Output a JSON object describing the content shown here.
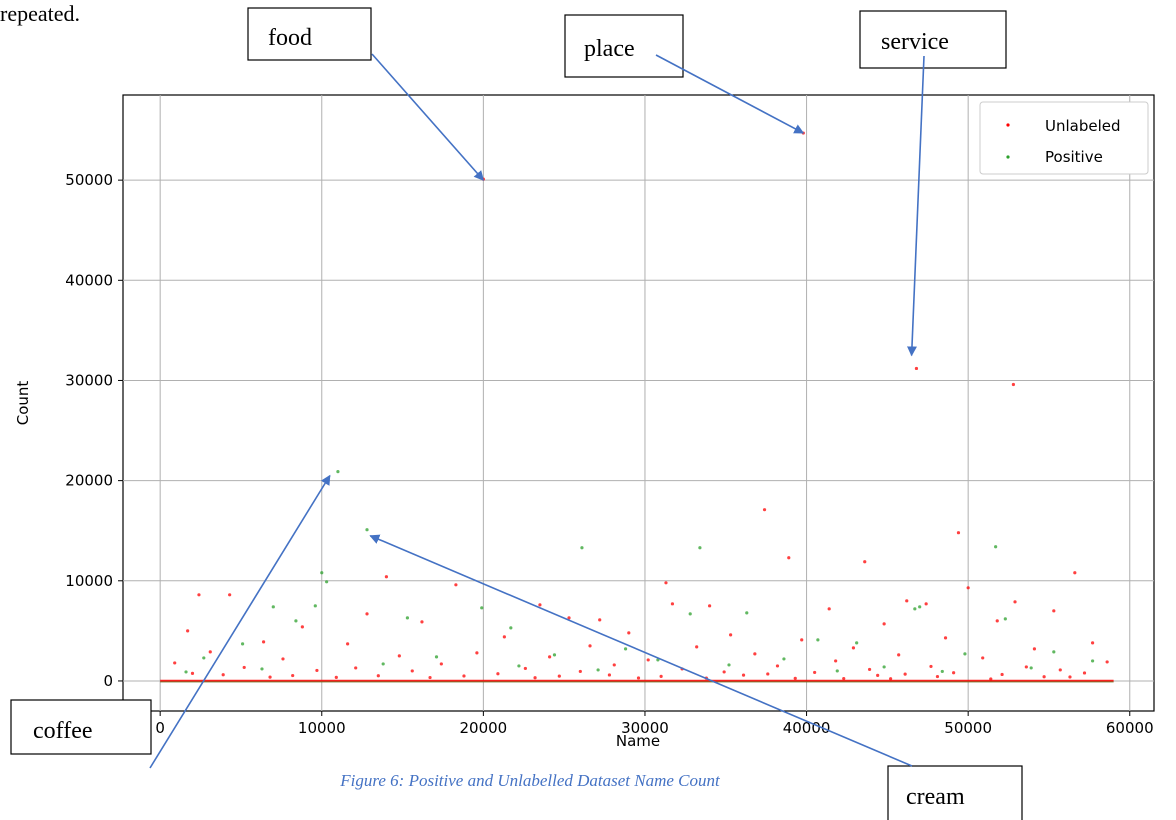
{
  "header_fragment": "repeated.",
  "caption": "Figure 6: Positive and Unlabelled Dataset Name Count",
  "caption_color": "#4472c4",
  "annotations": [
    {
      "label": "food",
      "target_x": 20000,
      "target_y": 50000
    },
    {
      "label": "place",
      "target_x": 39800,
      "target_y": 54700
    },
    {
      "label": "service",
      "target_x": 46500,
      "target_y": 32500
    },
    {
      "label": "coffee",
      "target_x": 10500,
      "target_y": 20500
    },
    {
      "label": "cream",
      "target_x": 13000,
      "target_y": 14500
    }
  ],
  "annotation_arrow_color": "#4472c4",
  "chart_data": {
    "type": "scatter",
    "xlabel": "Name",
    "ylabel": "Count",
    "xlim": [
      -2300,
      61500
    ],
    "ylim": [
      -3000,
      58500
    ],
    "xticks": [
      0,
      10000,
      20000,
      30000,
      40000,
      50000,
      60000
    ],
    "yticks": [
      0,
      10000,
      20000,
      30000,
      40000,
      50000
    ],
    "grid": true,
    "legend_position": "top-right",
    "series": [
      {
        "name": "Unlabeled",
        "color": "#ff0000",
        "points": [
          [
            20000,
            50100
          ],
          [
            39800,
            54700
          ],
          [
            46800,
            31200
          ],
          [
            52800,
            29600
          ],
          [
            37400,
            17100
          ],
          [
            49400,
            14800
          ],
          [
            38900,
            12300
          ],
          [
            43600,
            11900
          ],
          [
            56600,
            10800
          ],
          [
            14000,
            10400
          ],
          [
            31300,
            9800
          ],
          [
            18300,
            9600
          ],
          [
            50000,
            9300
          ],
          [
            2400,
            8600
          ],
          [
            4300,
            8600
          ],
          [
            46200,
            8000
          ],
          [
            52900,
            7900
          ],
          [
            47400,
            7700
          ],
          [
            23500,
            7600
          ],
          [
            31700,
            7700
          ],
          [
            34000,
            7500
          ],
          [
            41400,
            7200
          ],
          [
            55300,
            7000
          ],
          [
            12800,
            6700
          ],
          [
            25300,
            6300
          ],
          [
            27200,
            6100
          ],
          [
            51800,
            6000
          ],
          [
            16200,
            5900
          ],
          [
            44800,
            5700
          ],
          [
            8800,
            5400
          ],
          [
            1700,
            5000
          ],
          [
            29000,
            4800
          ],
          [
            35300,
            4600
          ],
          [
            21300,
            4400
          ],
          [
            48600,
            4300
          ],
          [
            57700,
            3800
          ],
          [
            6400,
            3900
          ],
          [
            39700,
            4100
          ],
          [
            11600,
            3700
          ],
          [
            26600,
            3500
          ],
          [
            33200,
            3400
          ],
          [
            42900,
            3300
          ],
          [
            54100,
            3200
          ],
          [
            3100,
            2900
          ],
          [
            19600,
            2800
          ],
          [
            36800,
            2700
          ],
          [
            45700,
            2600
          ],
          [
            14800,
            2500
          ],
          [
            24100,
            2400
          ],
          [
            50900,
            2300
          ],
          [
            7600,
            2200
          ],
          [
            30200,
            2100
          ],
          [
            41800,
            2000
          ],
          [
            58600,
            1900
          ],
          [
            900,
            1800
          ],
          [
            17400,
            1700
          ],
          [
            28100,
            1600
          ],
          [
            38200,
            1500
          ],
          [
            47700,
            1450
          ],
          [
            53600,
            1400
          ],
          [
            5200,
            1350
          ],
          [
            12100,
            1300
          ],
          [
            22600,
            1250
          ],
          [
            32300,
            1200
          ],
          [
            43900,
            1150
          ],
          [
            55700,
            1100
          ],
          [
            9700,
            1050
          ],
          [
            15600,
            1000
          ],
          [
            26000,
            950
          ],
          [
            34900,
            900
          ],
          [
            40500,
            850
          ],
          [
            49100,
            820
          ],
          [
            57200,
            800
          ],
          [
            2000,
            760
          ],
          [
            20900,
            720
          ],
          [
            37600,
            700
          ],
          [
            46100,
            680
          ],
          [
            52100,
            650
          ],
          [
            3900,
            620
          ],
          [
            27800,
            600
          ],
          [
            36100,
            580
          ],
          [
            44400,
            560
          ],
          [
            8200,
            540
          ],
          [
            13500,
            520
          ],
          [
            18800,
            500
          ],
          [
            24700,
            480
          ],
          [
            31000,
            460
          ],
          [
            48100,
            440
          ],
          [
            54700,
            420
          ],
          [
            56300,
            400
          ],
          [
            6800,
            380
          ],
          [
            10900,
            360
          ],
          [
            16700,
            340
          ],
          [
            23200,
            320
          ],
          [
            29600,
            300
          ],
          [
            33800,
            280
          ],
          [
            39300,
            260
          ],
          [
            42300,
            240
          ],
          [
            45200,
            220
          ],
          [
            51400,
            200
          ]
        ]
      },
      {
        "name": "Positive",
        "color": "#2ca02c",
        "points": [
          [
            11000,
            20900
          ],
          [
            12800,
            15100
          ],
          [
            26100,
            13300
          ],
          [
            33400,
            13300
          ],
          [
            51700,
            13400
          ],
          [
            10000,
            10800
          ],
          [
            10300,
            9900
          ],
          [
            19900,
            7300
          ],
          [
            7000,
            7400
          ],
          [
            8400,
            6000
          ],
          [
            47000,
            7400
          ],
          [
            46700,
            7200
          ],
          [
            32800,
            6700
          ],
          [
            5100,
            3700
          ],
          [
            9600,
            7500
          ],
          [
            15300,
            6300
          ],
          [
            21700,
            5300
          ],
          [
            36300,
            6800
          ],
          [
            52300,
            6200
          ],
          [
            40700,
            4100
          ],
          [
            28800,
            3200
          ],
          [
            43100,
            3800
          ],
          [
            55300,
            2900
          ],
          [
            2700,
            2300
          ],
          [
            17100,
            2400
          ],
          [
            24400,
            2600
          ],
          [
            30800,
            2100
          ],
          [
            38600,
            2200
          ],
          [
            49800,
            2700
          ],
          [
            57700,
            2000
          ],
          [
            13800,
            1700
          ],
          [
            22200,
            1500
          ],
          [
            35200,
            1600
          ],
          [
            44800,
            1400
          ],
          [
            53900,
            1300
          ],
          [
            6300,
            1200
          ],
          [
            27100,
            1100
          ],
          [
            41900,
            1000
          ],
          [
            48400,
            950
          ],
          [
            1600,
            900
          ]
        ]
      }
    ]
  }
}
